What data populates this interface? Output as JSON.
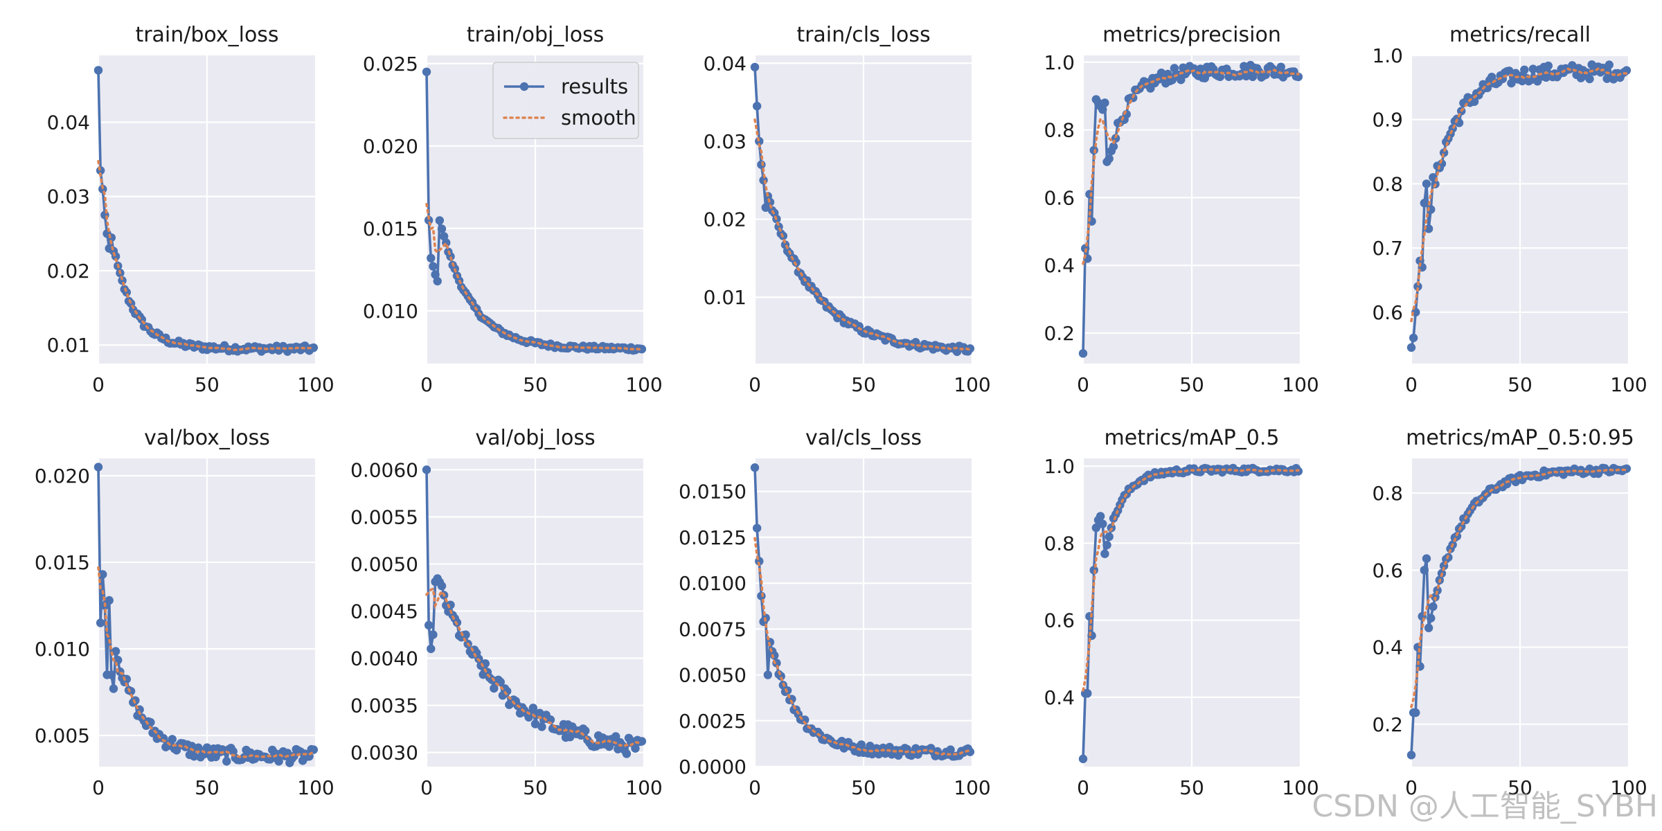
{
  "watermark": "CSDN @人工智能_SYBH",
  "colors": {
    "background": "#eaeaf2",
    "grid": "#ffffff",
    "results": "#4c72b0",
    "smooth": "#dd8452"
  },
  "legend": {
    "results": "results",
    "smooth": "smooth",
    "placement": "top-right",
    "panel": 1
  },
  "chart_data": [
    {
      "type": "line",
      "title": "train/box_loss",
      "xlim": [
        0,
        100
      ],
      "ylim": [
        0.0075,
        0.049
      ],
      "xticks": [
        0,
        50,
        100
      ],
      "yticks": [
        0.01,
        0.02,
        0.03,
        0.04
      ],
      "yticklabels": [
        "0.01",
        "0.02",
        "0.03",
        "0.04"
      ],
      "kind": "decay",
      "start": 0.047,
      "end": 0.0095,
      "tau": 10,
      "k": [
        0.0335,
        0.031,
        0.0275,
        0.025,
        0.023
      ],
      "noise": 0.0004
    },
    {
      "type": "line",
      "title": "train/obj_loss",
      "xlim": [
        0,
        100
      ],
      "ylim": [
        0.0068,
        0.0255
      ],
      "xticks": [
        0,
        50,
        100
      ],
      "yticks": [
        0.01,
        0.015,
        0.02,
        0.025
      ],
      "yticklabels": [
        "0.010",
        "0.015",
        "0.020",
        "0.025"
      ],
      "kind": "decay",
      "start": 0.0245,
      "end": 0.0077,
      "tau": 14,
      "k": [
        0.0155,
        0.0132,
        0.0127,
        0.0122,
        0.0118
      ],
      "noise": 0.00012
    },
    {
      "type": "line",
      "title": "train/cls_loss",
      "xlim": [
        0,
        100
      ],
      "ylim": [
        0.0015,
        0.041
      ],
      "xticks": [
        0,
        50,
        100
      ],
      "yticks": [
        0.01,
        0.02,
        0.03,
        0.04
      ],
      "yticklabels": [
        "0.01",
        "0.02",
        "0.03",
        "0.04"
      ],
      "kind": "decay",
      "start": 0.0395,
      "end": 0.003,
      "tau": 22,
      "k": [
        0.0345,
        0.03,
        0.027,
        0.025,
        0.0215
      ],
      "noise": 0.0004
    },
    {
      "type": "line",
      "title": "metrics/precision",
      "xlim": [
        0,
        100
      ],
      "ylim": [
        0.11,
        1.02
      ],
      "xticks": [
        0,
        50,
        100
      ],
      "yticks": [
        0.2,
        0.4,
        0.6,
        0.8,
        1.0
      ],
      "yticklabels": [
        "0.2",
        "0.4",
        "0.6",
        "0.8",
        "1.0"
      ],
      "kind": "rise",
      "start": 0.14,
      "end": 0.975,
      "tau": 10,
      "k": [
        0.45,
        0.42,
        0.61,
        0.53,
        0.74,
        0.89,
        0.88,
        0.87,
        0.86,
        0.88
      ],
      "noise": 0.02
    },
    {
      "type": "line",
      "title": "metrics/recall",
      "xlim": [
        0,
        100
      ],
      "ylim": [
        0.52,
        1.0
      ],
      "xticks": [
        0,
        50,
        100
      ],
      "yticks": [
        0.6,
        0.7,
        0.8,
        0.9,
        1.0
      ],
      "yticklabels": [
        "0.6",
        "0.7",
        "0.8",
        "0.9",
        "1.0"
      ],
      "kind": "rise",
      "start": 0.545,
      "end": 0.975,
      "tau": 12,
      "k": [
        0.56,
        0.6,
        0.64,
        0.68,
        0.67,
        0.77,
        0.8,
        0.73,
        0.76,
        0.81
      ],
      "noise": 0.012
    },
    {
      "type": "line",
      "title": "val/box_loss",
      "xlim": [
        0,
        100
      ],
      "ylim": [
        0.0032,
        0.021
      ],
      "xticks": [
        0,
        50,
        100
      ],
      "yticks": [
        0.005,
        0.01,
        0.015,
        0.02
      ],
      "yticklabels": [
        "0.005",
        "0.010",
        "0.015",
        "0.020"
      ],
      "kind": "decay",
      "start": 0.0205,
      "end": 0.0038,
      "tau": 12,
      "k": [
        0.0115,
        0.0143,
        0.0125,
        0.0085,
        0.0128,
        0.0085,
        0.0077
      ],
      "noise": 0.0004
    },
    {
      "type": "line",
      "title": "val/obj_loss",
      "xlim": [
        0,
        100
      ],
      "ylim": [
        0.00285,
        0.00612
      ],
      "xticks": [
        0,
        50,
        100
      ],
      "yticks": [
        0.003,
        0.0035,
        0.004,
        0.0045,
        0.005,
        0.0055,
        0.006
      ],
      "yticklabels": [
        "0.0030",
        "0.0035",
        "0.0040",
        "0.0045",
        "0.0050",
        "0.0055",
        "0.0060"
      ],
      "kind": "decay",
      "start": 0.006,
      "end": 0.00297,
      "tau": 30,
      "k": [
        0.00435,
        0.0041,
        0.00425
      ],
      "noise": 9e-05
    },
    {
      "type": "line",
      "title": "val/cls_loss",
      "xlim": [
        0,
        100
      ],
      "ylim": [
        0.0,
        0.0168
      ],
      "xticks": [
        0,
        50,
        100
      ],
      "yticks": [
        0.0,
        0.0025,
        0.005,
        0.0075,
        0.01,
        0.0125,
        0.015
      ],
      "yticklabels": [
        "0.0000",
        "0.0025",
        "0.0050",
        "0.0075",
        "0.0100",
        "0.0125",
        "0.0150"
      ],
      "kind": "decay",
      "start": 0.0163,
      "end": 0.0008,
      "tau": 12,
      "k": [
        0.013,
        0.0112,
        0.0093,
        0.0079,
        0.0081,
        0.005
      ],
      "noise": 0.00025
    },
    {
      "type": "line",
      "title": "metrics/mAP_0.5",
      "xlim": [
        0,
        100
      ],
      "ylim": [
        0.22,
        1.02
      ],
      "xticks": [
        0,
        50,
        100
      ],
      "yticks": [
        0.4,
        0.6,
        0.8,
        1.0
      ],
      "yticklabels": [
        "0.4",
        "0.6",
        "0.8",
        "1.0"
      ],
      "kind": "rise",
      "start": 0.24,
      "end": 0.99,
      "tau": 8,
      "k": [
        0.41,
        0.41,
        0.61,
        0.56,
        0.73,
        0.84,
        0.86,
        0.87,
        0.85
      ],
      "noise": 0.006
    },
    {
      "type": "line",
      "title": "metrics/mAP_0.5:0.95",
      "xlim": [
        0,
        100
      ],
      "ylim": [
        0.09,
        0.89
      ],
      "xticks": [
        0,
        50,
        100
      ],
      "yticks": [
        0.2,
        0.4,
        0.6,
        0.8
      ],
      "yticklabels": [
        "0.2",
        "0.4",
        "0.6",
        "0.8"
      ],
      "kind": "rise",
      "start": 0.12,
      "end": 0.86,
      "tau": 14,
      "k": [
        0.23,
        0.23,
        0.4,
        0.35,
        0.48,
        0.6,
        0.63
      ],
      "noise": 0.008
    }
  ]
}
